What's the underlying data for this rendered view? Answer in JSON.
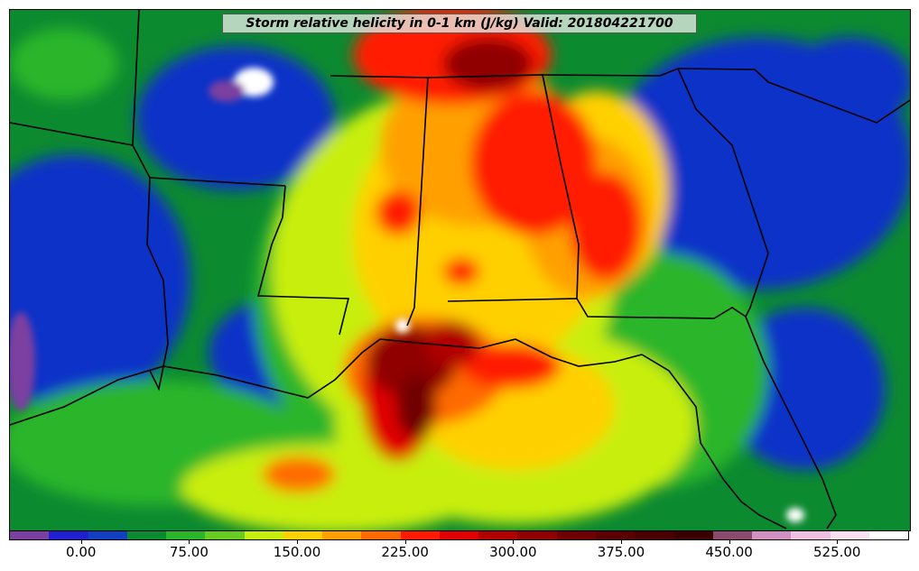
{
  "title": "Storm relative helicity in 0-1 km (J/kg) Valid: 201804221700",
  "colorbar": {
    "colors": [
      "#7b3fa0",
      "#2020d0",
      "#1040c0",
      "#0c8a30",
      "#2bb52b",
      "#66cc22",
      "#c8ee10",
      "#ffd000",
      "#ffa000",
      "#ff6a00",
      "#ff1a00",
      "#e00000",
      "#b00000",
      "#900000",
      "#700000",
      "#5a0000",
      "#4a0000",
      "#3a0000",
      "#8a4a6a",
      "#d090c0",
      "#f0c0e0",
      "#f8e0f0",
      "#ffffff"
    ],
    "tick_values": [
      0,
      75,
      150,
      225,
      300,
      375,
      450,
      525
    ],
    "tick_labels": [
      "0.00",
      "75.00",
      "150.00",
      "225.00",
      "300.00",
      "375.00",
      "450.00",
      "525.00"
    ],
    "min": -50,
    "max": 575
  }
}
